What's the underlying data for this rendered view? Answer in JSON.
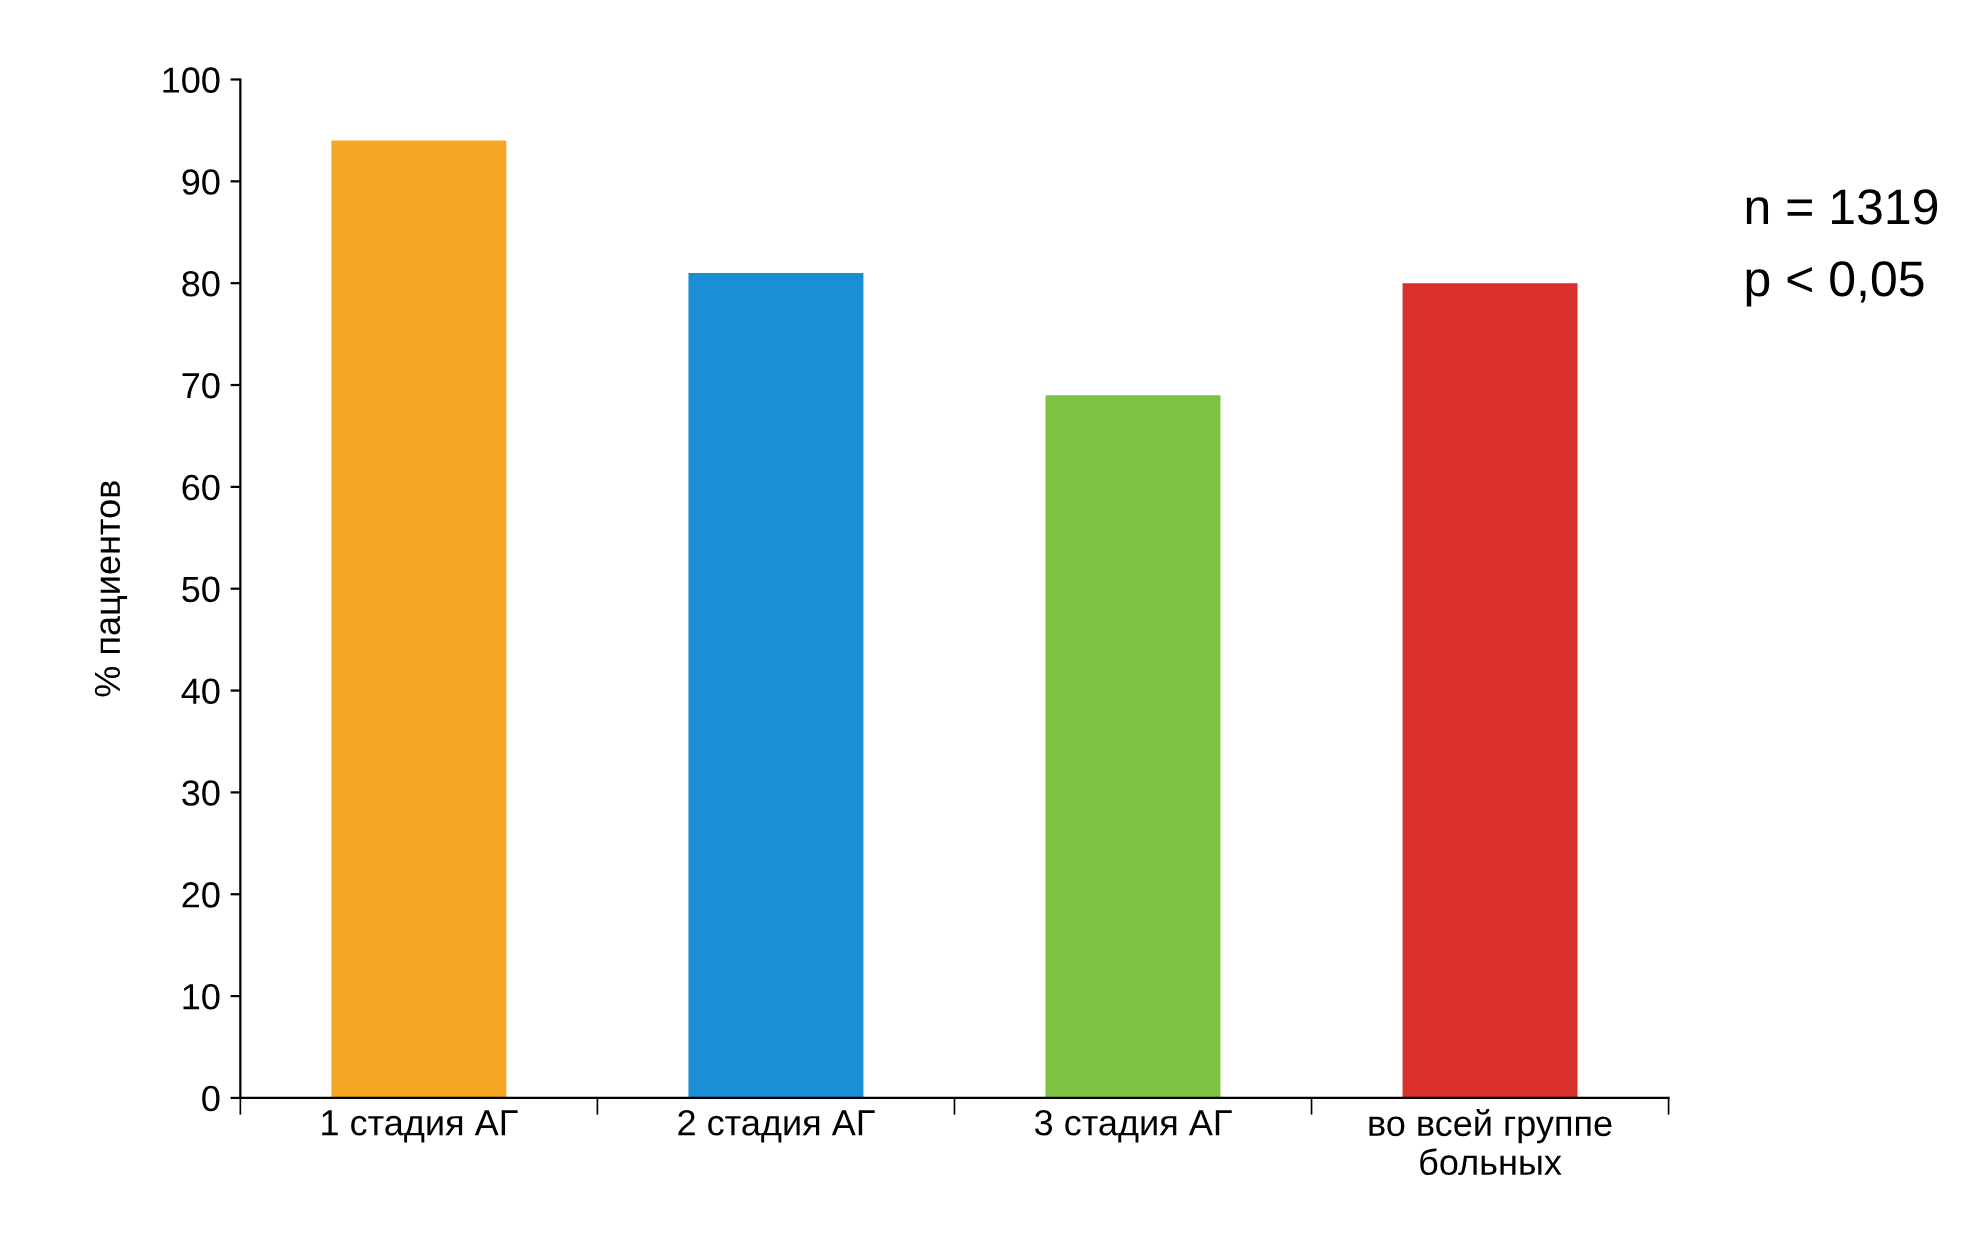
{
  "chart_data": {
    "type": "bar",
    "ylabel": "% пациентов",
    "categories": [
      "1 стадия АГ",
      "2 стадия АГ",
      "3 стадия АГ",
      "во всей группе\nбольных"
    ],
    "values": [
      94,
      81,
      69,
      80
    ],
    "colors": [
      "#f5a623",
      "#1a8fd6",
      "#7dc242",
      "#d9302b"
    ],
    "ylim": [
      0,
      100
    ],
    "yticks": [
      0,
      10,
      20,
      30,
      40,
      50,
      60,
      70,
      80,
      90,
      100
    ],
    "grid": false,
    "annotations": [
      "n = 1319",
      "p < 0,05"
    ]
  }
}
